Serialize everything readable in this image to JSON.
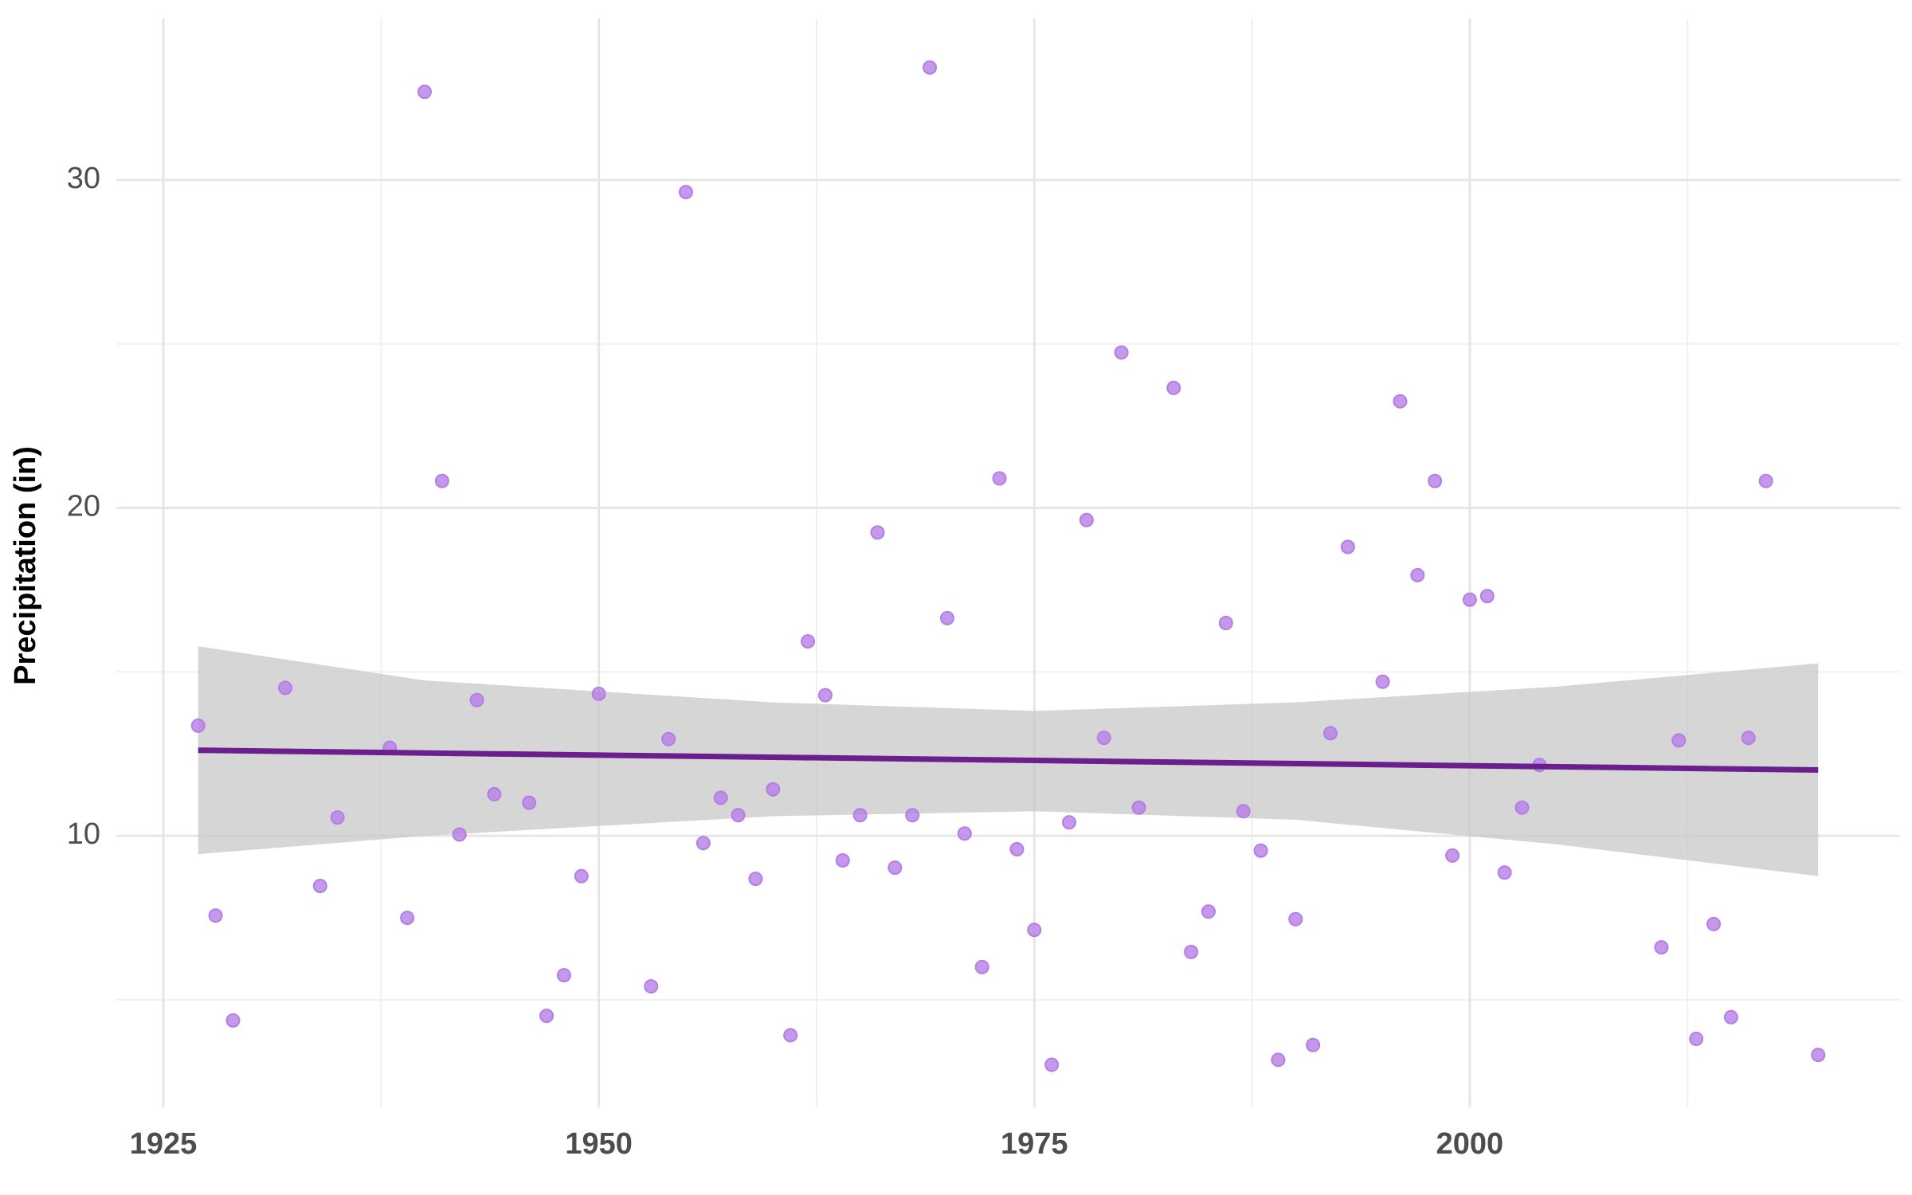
{
  "chart_data": {
    "type": "scatter",
    "y_label": "Precipitation (in)",
    "xlim": [
      1922.3,
      2024.7
    ],
    "ylim": [
      1.72,
      34.93
    ],
    "xticks": [
      1925,
      1950,
      1975,
      2000
    ],
    "yticks": [
      10,
      20,
      30
    ],
    "x_minor_ticks": [
      1937.5,
      1962.5,
      1987.5,
      2012.5
    ],
    "y_minor_ticks": [
      5,
      15,
      25
    ],
    "grid": true,
    "point_color": "#b57ee6",
    "x": [
      1927,
      1928,
      1929,
      1932,
      1934,
      1935,
      1938,
      1939,
      1940,
      1941,
      1942,
      1943,
      1944,
      1946,
      1947,
      1948,
      1949,
      1950,
      1953,
      1954,
      1955,
      1956,
      1957,
      1958,
      1959,
      1960,
      1961,
      1962,
      1963,
      1964,
      1965,
      1966,
      1967,
      1968,
      1969,
      1970,
      1971,
      1972,
      1973,
      1974,
      1975,
      1976,
      1977,
      1978,
      1979,
      1980,
      1981,
      1983,
      1984,
      1985,
      1986,
      1987,
      1988,
      1989,
      1990,
      1991,
      1992,
      1993,
      1995,
      1996,
      1997,
      1998,
      1999,
      2000,
      2001,
      2002,
      2003,
      2004,
      2011,
      2012,
      2013,
      2014,
      2015,
      2016,
      2017,
      2020
    ],
    "values": [
      13.36,
      7.57,
      4.37,
      14.51,
      8.47,
      10.56,
      12.69,
      7.5,
      32.69,
      20.82,
      10.04,
      14.14,
      11.27,
      11.01,
      4.51,
      5.75,
      8.77,
      14.33,
      5.41,
      12.95,
      29.63,
      9.78,
      11.16,
      10.63,
      8.69,
      11.42,
      3.92,
      15.93,
      14.29,
      9.25,
      10.63,
      19.25,
      9.03,
      10.63,
      33.43,
      16.64,
      10.07,
      6.0,
      20.9,
      9.59,
      7.13,
      3.02,
      10.41,
      19.63,
      12.99,
      24.74,
      10.86,
      23.66,
      6.46,
      7.69,
      16.49,
      10.75,
      9.55,
      3.17,
      7.46,
      3.62,
      13.13,
      18.81,
      14.7,
      23.25,
      17.95,
      20.82,
      9.4,
      17.2,
      17.31,
      8.88,
      10.86,
      12.16,
      6.6,
      12.91,
      3.81,
      7.31,
      4.47,
      12.99,
      20.82,
      3.32
    ],
    "trend": {
      "color": "#6a1f8c",
      "x": [
        1927,
        2020
      ],
      "values": [
        12.61,
        12.01
      ]
    },
    "band": {
      "color": "#c4c4c4",
      "x": [
        1927,
        1940,
        1960,
        1975,
        1990,
        2005,
        2020
      ],
      "upper": [
        15.78,
        14.74,
        14.07,
        13.81,
        14.07,
        14.55,
        15.26
      ],
      "lower": [
        9.44,
        10.0,
        10.6,
        10.75,
        10.49,
        9.74,
        8.77
      ]
    }
  }
}
